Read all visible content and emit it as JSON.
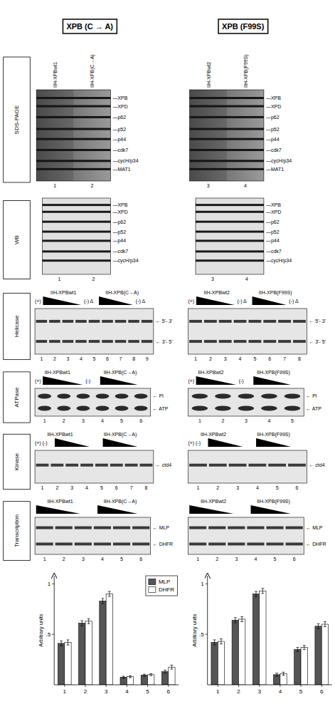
{
  "chart_data": [
    {
      "type": "bar",
      "title": "XPB (C → A)",
      "ylabel": "Arbitrary units",
      "categories": [
        "1",
        "2",
        "3",
        "4",
        "5",
        "6"
      ],
      "series": [
        {
          "name": "MLP",
          "color": "#555555",
          "values": [
            0.41,
            0.61,
            0.83,
            0.075,
            0.095,
            0.13
          ],
          "errors": [
            0.025,
            0.025,
            0.025,
            0.01,
            0.01,
            0.015
          ]
        },
        {
          "name": "DHFR",
          "color": "#ffffff",
          "values": [
            0.42,
            0.63,
            0.9,
            0.08,
            0.1,
            0.175
          ],
          "errors": [
            0.025,
            0.025,
            0.025,
            0.01,
            0.01,
            0.02
          ]
        }
      ],
      "ylim": [
        0,
        1.08
      ],
      "yticks": [
        {
          "value": 0.5,
          "label": ".5"
        },
        1
      ],
      "legend": "upper right",
      "annotations": [
        {
          "text": "SDS-PAGE",
          "lane_labels": [
            "IIH-XPBwt1",
            "IIH-XPB(C→A)"
          ],
          "lanes": [
            "1",
            "2"
          ],
          "band_labels": [
            "—XPB",
            "—XPD",
            "—p62",
            "—p52",
            "—p44",
            "—cdk7",
            "—cycH/p34",
            "—MAT1"
          ]
        },
        {
          "text": "WB",
          "lanes": [
            "1",
            "2"
          ],
          "band_labels": [
            "—XPB",
            "—XPD",
            "—p62",
            "—p52",
            "—p44",
            "—cdk7",
            "—cycH/p34"
          ]
        },
        {
          "text": "Helicase",
          "header": [
            "IIH-XPBwt1",
            "IIH-XPB(C→A)",
            "(+)",
            "(-) Δ",
            "(-) Δ"
          ],
          "lanes": [
            "1",
            "2",
            "3",
            "4",
            "5",
            "6",
            "7",
            "8",
            "9"
          ],
          "band_labels": [
            "← 5'- 3'",
            "← 3'- 5'"
          ]
        },
        {
          "text": "ATPase",
          "header": [
            "IIH-XPBwt1",
            "IIH-XPB(C→A)",
            "(+)",
            "(-)"
          ],
          "lanes": [
            "1",
            "2",
            "3",
            "4",
            "5",
            "6"
          ],
          "band_labels": [
            "← Pi",
            "← ATP"
          ]
        },
        {
          "text": "Kinase",
          "header": [
            "IIH-XPBwt1",
            "IIH-XPB(C→A)",
            "(+) (-)"
          ],
          "lanes": [
            "1",
            "2",
            "3",
            "4",
            "5",
            "6",
            "7",
            "8"
          ],
          "band_labels": [
            "← ctd4"
          ]
        },
        {
          "text": "Transcription",
          "header": [
            "IIH-XPBwt1",
            "IIH-XPB(C→A)"
          ],
          "lanes": [
            "1",
            "2",
            "3",
            "4",
            "5",
            "6"
          ],
          "band_labels": [
            "← MLP",
            "← DHFR"
          ]
        }
      ]
    },
    {
      "type": "bar",
      "title": "XPB (F99S)",
      "ylabel": "Arbitrary units",
      "categories": [
        "1",
        "2",
        "3",
        "4",
        "5",
        "6"
      ],
      "series": [
        {
          "name": "MLP",
          "color": "#555555",
          "values": [
            0.42,
            0.64,
            0.9,
            0.1,
            0.35,
            0.58
          ],
          "errors": [
            0.025,
            0.025,
            0.025,
            0.015,
            0.02,
            0.025
          ]
        },
        {
          "name": "DHFR",
          "color": "#ffffff",
          "values": [
            0.43,
            0.65,
            0.93,
            0.11,
            0.37,
            0.6
          ],
          "errors": [
            0.025,
            0.025,
            0.025,
            0.015,
            0.02,
            0.025
          ]
        }
      ],
      "ylim": [
        0,
        1.08
      ],
      "yticks": [
        {
          "value": 0.5,
          "label": ".5"
        },
        1
      ],
      "legend": false,
      "annotations": [
        {
          "lane_labels": [
            "IIH-XPBwt2",
            "IIH-XPB(F99S)"
          ],
          "lanes": [
            "3",
            "4"
          ],
          "band_labels": [
            "—XPB",
            "—XPD",
            "—p62",
            "—p52",
            "—p44",
            "—cdk7",
            "—cycH/p34",
            "—MAT1"
          ]
        },
        {
          "lanes": [
            "3",
            "4"
          ],
          "band_labels": [
            "—XPB",
            "—XPD",
            "—p62",
            "—p52",
            "—p44",
            "—cdk7",
            "—cycH/p34"
          ]
        },
        {
          "header": [
            "IIH-XPBwt2",
            "IIH-XPB(F99S)",
            "(+)",
            "(-) Δ",
            "(-) Δ"
          ],
          "lanes": [
            "1",
            "2",
            "3",
            "4",
            "5",
            "6",
            "7",
            "8"
          ],
          "band_labels": [
            "← 5'- 3'",
            "← 3'- 5'"
          ]
        },
        {
          "header": [
            "IIH-XPBwt2",
            "IIH-XPB(F99S)",
            "(+)",
            "(-)"
          ],
          "lanes": [
            "1",
            "2",
            "3",
            "4",
            "5"
          ],
          "band_labels": [
            "← Pi",
            "← ATP"
          ]
        },
        {
          "header": [
            "IIH-XPBwt2",
            "IIH-XPB(F99S)",
            "(+) (-)"
          ],
          "lanes": [
            "1",
            "2",
            "3",
            "4",
            "5",
            "6"
          ],
          "band_labels": [
            "← ctd4"
          ]
        },
        {
          "header": [
            "IIH-XPBwt2",
            "IIH-XPB(F99S)"
          ],
          "lanes": [
            "1",
            "2",
            "3",
            "4",
            "5",
            "6"
          ],
          "band_labels": [
            "← MLP",
            "← DHFR"
          ]
        }
      ]
    }
  ]
}
